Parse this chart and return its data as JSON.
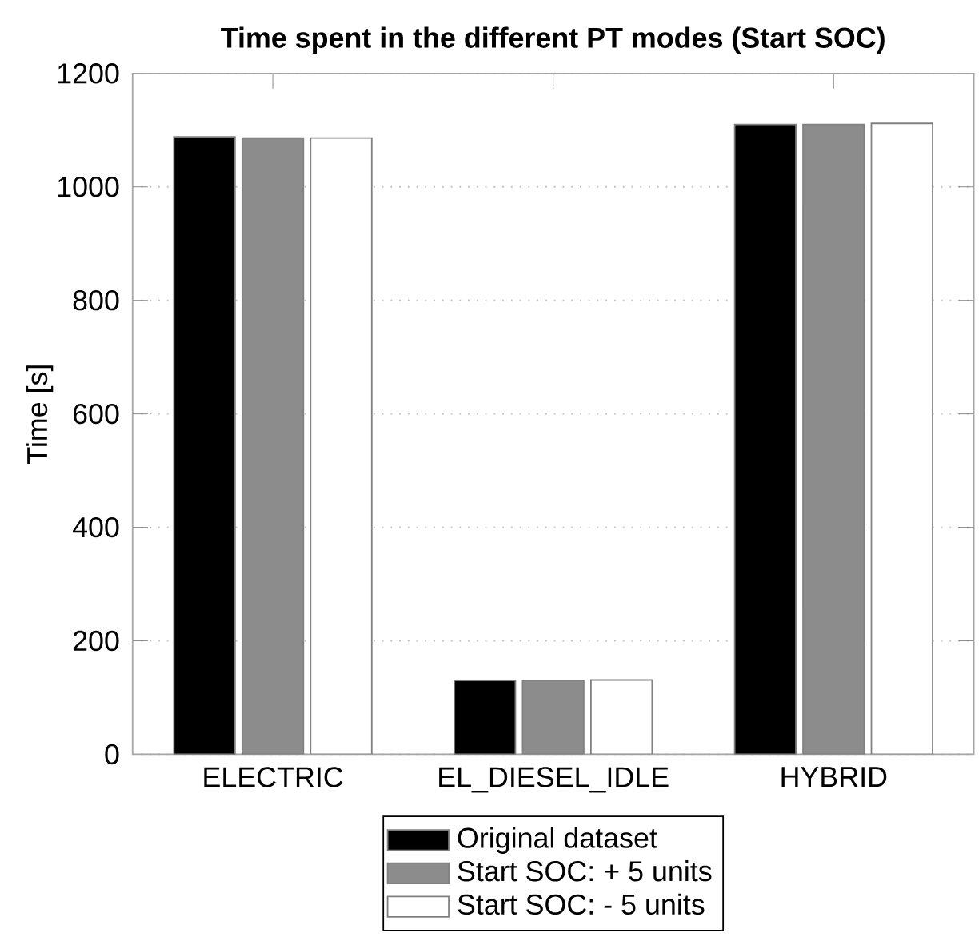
{
  "chart_data": {
    "type": "bar",
    "title": "Time spent in the different PT modes (Start SOC)",
    "ylabel": "Time [s]",
    "categories": [
      "ELECTRIC",
      "EL_DIESEL_IDLE",
      "HYBRID"
    ],
    "series": [
      {
        "name": "Original dataset",
        "color": "#000000",
        "values": [
          1088,
          130,
          1110
        ]
      },
      {
        "name": "Start SOC: + 5 units",
        "color": "#8c8c8c",
        "values": [
          1086,
          130,
          1110
        ]
      },
      {
        "name": "Start SOC: - 5 units",
        "color": "#ffffff",
        "values": [
          1086,
          131,
          1112
        ]
      }
    ],
    "ylim": [
      0,
      1200
    ],
    "yticks": [
      0,
      200,
      400,
      600,
      800,
      1000,
      1200
    ],
    "grid": "y",
    "legend": "bottom"
  }
}
